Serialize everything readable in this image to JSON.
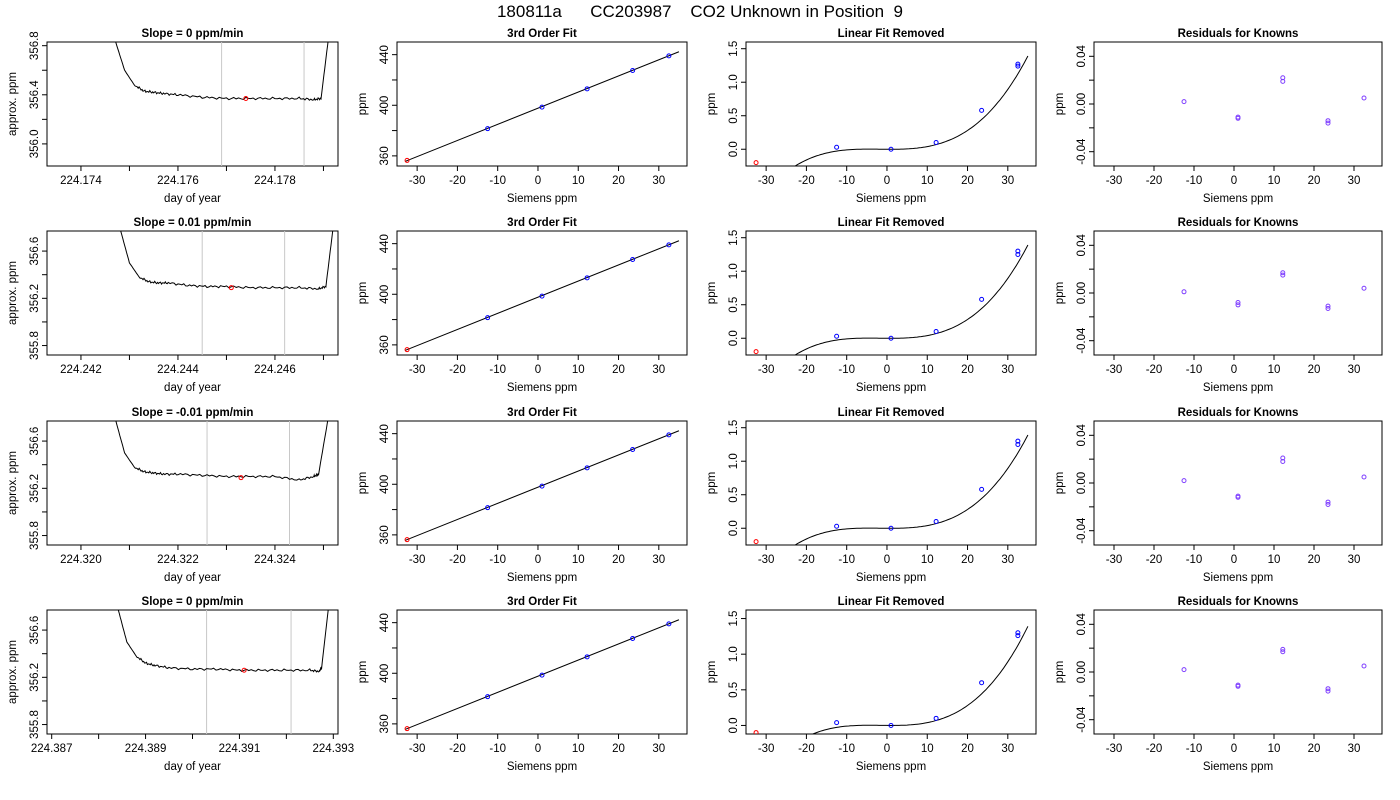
{
  "figure_title": "180811a      CC203987    CO2 Unknown in Position  9",
  "colors": {
    "axis": "#000000",
    "line": "#000000",
    "known_points": "#0000ff",
    "unknown_points": "#ff0000",
    "residual_points": "#7f3fff",
    "window_lines": "#c8c8c8"
  },
  "chart_data": [
    {
      "type": "line",
      "row": 1,
      "panel": "timeseries",
      "title": "Slope =  0  ppm/min",
      "xlabel": "day of year",
      "ylabel": "approx. ppm",
      "xlim": [
        224.1733,
        224.1793
      ],
      "ylim": [
        355.82,
        356.83
      ],
      "xticks": [
        224.174,
        224.175,
        224.176,
        224.177,
        224.178,
        224.179
      ],
      "xtick_labels": [
        "224.174",
        "",
        "224.176",
        "",
        "224.178",
        ""
      ],
      "yticks": [
        356.0,
        356.2,
        356.4,
        356.6,
        356.8
      ],
      "ytick_labels": [
        "356.0",
        "",
        "356.4",
        "",
        "356.8"
      ],
      "window_lines": [
        224.1769,
        224.1786
      ],
      "unknown_point": [
        224.1774,
        356.37
      ],
      "series": {
        "x": [
          224.1747,
          224.1749,
          224.1751,
          224.1753,
          224.1755,
          224.1757,
          224.176,
          224.1765,
          224.177,
          224.1775,
          224.178,
          224.1785,
          224.1788,
          224.17895,
          224.1791
        ],
        "y": [
          356.85,
          356.6,
          356.48,
          356.43,
          356.42,
          356.41,
          356.4,
          356.38,
          356.37,
          356.37,
          356.37,
          356.37,
          356.36,
          356.37,
          356.85
        ]
      }
    },
    {
      "type": "scatter",
      "row": 1,
      "panel": "fit",
      "title": "3rd Order Fit",
      "xlabel": "Siemens ppm",
      "ylabel": "ppm",
      "xlim": [
        -35,
        37
      ],
      "ylim": [
        352,
        450
      ],
      "xticks": [
        -30,
        -20,
        -10,
        0,
        10,
        20,
        30
      ],
      "xtick_labels": [
        "-30",
        "-20",
        "-10",
        "0",
        "10",
        "20",
        "30"
      ],
      "yticks": [
        360,
        380,
        400,
        420,
        440
      ],
      "ytick_labels": [
        "360",
        "",
        "400",
        "",
        "440"
      ],
      "knowns": {
        "x": [
          -12.5,
          1.0,
          12.2,
          23.5,
          32.5
        ],
        "y": [
          381.5,
          398.5,
          413.0,
          427.5,
          439.0
        ]
      },
      "unknown": [
        -32.5,
        356.4
      ],
      "fit_line": {
        "x": [
          -33,
          35
        ],
        "y": [
          355.6,
          442.3
        ]
      }
    },
    {
      "type": "scatter",
      "row": 1,
      "panel": "linear_removed",
      "title": "Linear Fit Removed",
      "xlabel": "Siemens ppm",
      "ylabel": "ppm",
      "xlim": [
        -35,
        37
      ],
      "ylim": [
        -0.25,
        1.6
      ],
      "xticks": [
        -30,
        -20,
        -10,
        0,
        10,
        20,
        30
      ],
      "xtick_labels": [
        "-30",
        "-20",
        "-10",
        "0",
        "10",
        "20",
        "30"
      ],
      "yticks": [
        0.0,
        0.5,
        1.0,
        1.5
      ],
      "ytick_labels": [
        "0.0",
        "0.5",
        "1.0",
        "1.5"
      ],
      "knowns": {
        "x": [
          -12.5,
          1.0,
          12.2,
          23.5,
          32.5,
          32.5
        ],
        "y": [
          0.03,
          0.0,
          0.1,
          0.58,
          1.24,
          1.27
        ]
      },
      "unknown": [
        -32.5,
        -0.2
      ],
      "curve_coef": [
        0.0,
        -0.0004,
        0.00015,
        2.85e-05
      ]
    },
    {
      "type": "scatter",
      "row": 1,
      "panel": "residuals",
      "title": "Residuals for Knowns",
      "xlabel": "Siemens ppm",
      "ylabel": "ppm",
      "xlim": [
        -35,
        37
      ],
      "ylim": [
        -0.052,
        0.052
      ],
      "xticks": [
        -30,
        -20,
        -10,
        0,
        10,
        20,
        30
      ],
      "xtick_labels": [
        "-30",
        "-20",
        "-10",
        "0",
        "10",
        "20",
        "30"
      ],
      "yticks": [
        -0.04,
        -0.02,
        0.0,
        0.02,
        0.04
      ],
      "ytick_labels": [
        "-0.04",
        "",
        "0.00",
        "",
        "0.04"
      ],
      "points": {
        "x": [
          -12.5,
          1.0,
          1.0,
          12.2,
          12.2,
          23.5,
          23.5,
          32.5
        ],
        "y": [
          0.002,
          -0.011,
          -0.012,
          0.022,
          0.019,
          -0.014,
          -0.016,
          0.005
        ]
      }
    },
    {
      "type": "line",
      "row": 2,
      "panel": "timeseries",
      "title": "Slope =  0.01  ppm/min",
      "xlabel": "day of year",
      "ylabel": "approx. ppm",
      "xlim": [
        224.2413,
        224.2473
      ],
      "ylim": [
        355.72,
        356.77
      ],
      "xticks": [
        224.242,
        224.243,
        224.244,
        224.245,
        224.246,
        224.247
      ],
      "xtick_labels": [
        "224.242",
        "",
        "224.244",
        "",
        "224.246",
        ""
      ],
      "yticks": [
        355.8,
        356.0,
        356.2,
        356.4,
        356.6
      ],
      "ytick_labels": [
        "355.8",
        "",
        "356.2",
        "",
        "356.6"
      ],
      "window_lines": [
        224.2445,
        224.2462
      ],
      "unknown_point": [
        224.2451,
        356.29
      ],
      "series": {
        "x": [
          224.2428,
          224.243,
          224.2432,
          224.2434,
          224.2436,
          224.2438,
          224.2442,
          224.2446,
          224.245,
          224.2455,
          224.246,
          224.2465,
          224.2469,
          224.24705,
          224.2472
        ],
        "y": [
          356.8,
          356.5,
          356.38,
          356.34,
          356.33,
          356.33,
          356.31,
          356.3,
          356.3,
          356.29,
          356.29,
          356.29,
          356.28,
          356.3,
          356.8
        ]
      }
    },
    {
      "type": "scatter",
      "row": 2,
      "panel": "fit",
      "title": "3rd Order Fit",
      "xlabel": "Siemens ppm",
      "ylabel": "ppm",
      "xlim": [
        -35,
        37
      ],
      "ylim": [
        352,
        450
      ],
      "xticks": [
        -30,
        -20,
        -10,
        0,
        10,
        20,
        30
      ],
      "xtick_labels": [
        "-30",
        "-20",
        "-10",
        "0",
        "10",
        "20",
        "30"
      ],
      "yticks": [
        360,
        380,
        400,
        420,
        440
      ],
      "ytick_labels": [
        "360",
        "",
        "400",
        "",
        "440"
      ],
      "knowns": {
        "x": [
          -12.5,
          1.0,
          12.2,
          23.5,
          32.5
        ],
        "y": [
          381.5,
          398.5,
          413.0,
          427.5,
          439.0
        ]
      },
      "unknown": [
        -32.5,
        356.2
      ],
      "fit_line": {
        "x": [
          -33,
          35
        ],
        "y": [
          355.6,
          442.3
        ]
      }
    },
    {
      "type": "scatter",
      "row": 2,
      "panel": "linear_removed",
      "title": "Linear Fit Removed",
      "xlabel": "Siemens ppm",
      "ylabel": "ppm",
      "xlim": [
        -35,
        37
      ],
      "ylim": [
        -0.25,
        1.6
      ],
      "xticks": [
        -30,
        -20,
        -10,
        0,
        10,
        20,
        30
      ],
      "xtick_labels": [
        "-30",
        "-20",
        "-10",
        "0",
        "10",
        "20",
        "30"
      ],
      "yticks": [
        0.0,
        0.5,
        1.0,
        1.5
      ],
      "ytick_labels": [
        "0.0",
        "0.5",
        "1.0",
        "1.5"
      ],
      "knowns": {
        "x": [
          -12.5,
          1.0,
          12.2,
          23.5,
          32.5,
          32.5
        ],
        "y": [
          0.03,
          0.0,
          0.1,
          0.58,
          1.25,
          1.3
        ]
      },
      "unknown": [
        -32.5,
        -0.2
      ],
      "curve_coef": [
        0.0,
        -0.0004,
        0.00015,
        2.85e-05
      ]
    },
    {
      "type": "scatter",
      "row": 2,
      "panel": "residuals",
      "title": "Residuals for Knowns",
      "xlabel": "Siemens ppm",
      "ylabel": "ppm",
      "xlim": [
        -35,
        37
      ],
      "ylim": [
        -0.052,
        0.052
      ],
      "xticks": [
        -30,
        -20,
        -10,
        0,
        10,
        20,
        30
      ],
      "xtick_labels": [
        "-30",
        "-20",
        "-10",
        "0",
        "10",
        "20",
        "30"
      ],
      "yticks": [
        -0.04,
        -0.02,
        0.0,
        0.02,
        0.04
      ],
      "ytick_labels": [
        "-0.04",
        "",
        "0.00",
        "",
        "0.04"
      ],
      "points": {
        "x": [
          -12.5,
          1.0,
          1.0,
          12.2,
          12.2,
          23.5,
          23.5,
          32.5
        ],
        "y": [
          0.001,
          -0.008,
          -0.01,
          0.017,
          0.015,
          -0.011,
          -0.013,
          0.004
        ]
      }
    },
    {
      "type": "line",
      "row": 3,
      "panel": "timeseries",
      "title": "Slope =  -0.01  ppm/min",
      "xlabel": "day of year",
      "ylabel": "approx. ppm",
      "xlim": [
        224.3193,
        224.3253
      ],
      "ylim": [
        355.72,
        356.77
      ],
      "xticks": [
        224.32,
        224.321,
        224.322,
        224.323,
        224.324,
        224.325
      ],
      "xtick_labels": [
        "224.320",
        "",
        "224.322",
        "",
        "224.324",
        ""
      ],
      "yticks": [
        355.8,
        356.0,
        356.2,
        356.4,
        356.6
      ],
      "ytick_labels": [
        "355.8",
        "",
        "356.2",
        "",
        "356.6"
      ],
      "window_lines": [
        224.3226,
        224.3243
      ],
      "unknown_point": [
        224.3233,
        356.29
      ],
      "series": {
        "x": [
          224.3207,
          224.3209,
          224.3211,
          224.3213,
          224.3215,
          224.3217,
          224.322,
          224.3225,
          224.323,
          224.3235,
          224.324,
          224.3245,
          224.3248,
          224.3249,
          224.3251
        ],
        "y": [
          356.8,
          356.5,
          356.38,
          356.34,
          356.33,
          356.32,
          356.32,
          356.31,
          356.3,
          356.3,
          356.3,
          356.27,
          356.3,
          356.32,
          356.8
        ]
      }
    },
    {
      "type": "scatter",
      "row": 3,
      "panel": "fit",
      "title": "3rd Order Fit",
      "xlabel": "Siemens ppm",
      "ylabel": "ppm",
      "xlim": [
        -35,
        37
      ],
      "ylim": [
        352,
        450
      ],
      "xticks": [
        -30,
        -20,
        -10,
        0,
        10,
        20,
        30
      ],
      "xtick_labels": [
        "-30",
        "-20",
        "-10",
        "0",
        "10",
        "20",
        "30"
      ],
      "yticks": [
        360,
        380,
        400,
        420,
        440
      ],
      "ytick_labels": [
        "360",
        "",
        "400",
        "",
        "440"
      ],
      "knowns": {
        "x": [
          -12.5,
          1.0,
          12.2,
          23.5,
          32.5
        ],
        "y": [
          381.5,
          398.5,
          413.0,
          427.5,
          439.0
        ]
      },
      "unknown": [
        -32.5,
        356.2
      ],
      "fit_line": {
        "x": [
          -33,
          35
        ],
        "y": [
          355.6,
          442.3
        ]
      }
    },
    {
      "type": "scatter",
      "row": 3,
      "panel": "linear_removed",
      "title": "Linear Fit Removed",
      "xlabel": "Siemens ppm",
      "ylabel": "ppm",
      "xlim": [
        -35,
        37
      ],
      "ylim": [
        -0.25,
        1.6
      ],
      "xticks": [
        -30,
        -20,
        -10,
        0,
        10,
        20,
        30
      ],
      "xtick_labels": [
        "-30",
        "-20",
        "-10",
        "0",
        "10",
        "20",
        "30"
      ],
      "yticks": [
        0.0,
        0.5,
        1.0,
        1.5
      ],
      "ytick_labels": [
        "0.0",
        "0.5",
        "1.0",
        "1.5"
      ],
      "knowns": {
        "x": [
          -12.5,
          1.0,
          12.2,
          23.5,
          32.5,
          32.5
        ],
        "y": [
          0.03,
          0.0,
          0.1,
          0.58,
          1.25,
          1.3
        ]
      },
      "unknown": [
        -32.5,
        -0.2
      ],
      "curve_coef": [
        0.0,
        -0.0004,
        0.00015,
        2.85e-05
      ]
    },
    {
      "type": "scatter",
      "row": 3,
      "panel": "residuals",
      "title": "Residuals for Knowns",
      "xlabel": "Siemens ppm",
      "ylabel": "ppm",
      "xlim": [
        -35,
        37
      ],
      "ylim": [
        -0.052,
        0.052
      ],
      "xticks": [
        -30,
        -20,
        -10,
        0,
        10,
        20,
        30
      ],
      "xtick_labels": [
        "-30",
        "-20",
        "-10",
        "0",
        "10",
        "20",
        "30"
      ],
      "yticks": [
        -0.04,
        -0.02,
        0.0,
        0.02,
        0.04
      ],
      "ytick_labels": [
        "-0.04",
        "",
        "0.00",
        "",
        "0.04"
      ],
      "points": {
        "x": [
          -12.5,
          1.0,
          1.0,
          12.2,
          12.2,
          23.5,
          23.5,
          32.5
        ],
        "y": [
          0.002,
          -0.011,
          -0.012,
          0.021,
          0.018,
          -0.016,
          -0.018,
          0.005
        ]
      }
    },
    {
      "type": "line",
      "row": 4,
      "panel": "timeseries",
      "title": "Slope =  0  ppm/min",
      "xlabel": "day of year",
      "ylabel": "approx. ppm",
      "xlim": [
        224.3869,
        224.3931
      ],
      "ylim": [
        355.72,
        356.77
      ],
      "xticks": [
        224.387,
        224.388,
        224.389,
        224.39,
        224.391,
        224.392,
        224.393
      ],
      "xtick_labels": [
        "224.387",
        "",
        "224.389",
        "",
        "224.391",
        "",
        "224.393"
      ],
      "yticks": [
        355.8,
        356.0,
        356.2,
        356.4,
        356.6
      ],
      "ytick_labels": [
        "355.8",
        "",
        "356.2",
        "",
        "356.6"
      ],
      "window_lines": [
        224.3903,
        224.3921
      ],
      "unknown_point": [
        224.3911,
        356.26
      ],
      "series": {
        "x": [
          224.3884,
          224.3886,
          224.3888,
          224.389,
          224.3892,
          224.3895,
          224.39,
          224.3905,
          224.391,
          224.3915,
          224.392,
          224.3925,
          224.3927,
          224.39275,
          224.3929
        ],
        "y": [
          356.8,
          356.5,
          356.38,
          356.32,
          356.3,
          356.28,
          356.27,
          356.27,
          356.26,
          356.26,
          356.26,
          356.26,
          356.25,
          356.28,
          356.8
        ]
      }
    },
    {
      "type": "scatter",
      "row": 4,
      "panel": "fit",
      "title": "3rd Order Fit",
      "xlabel": "Siemens ppm",
      "ylabel": "ppm",
      "xlim": [
        -35,
        37
      ],
      "ylim": [
        352,
        450
      ],
      "xticks": [
        -30,
        -20,
        -10,
        0,
        10,
        20,
        30
      ],
      "xtick_labels": [
        "-30",
        "-20",
        "-10",
        "0",
        "10",
        "20",
        "30"
      ],
      "yticks": [
        360,
        380,
        400,
        420,
        440
      ],
      "ytick_labels": [
        "360",
        "",
        "400",
        "",
        "440"
      ],
      "knowns": {
        "x": [
          -12.5,
          1.0,
          12.2,
          23.5,
          32.5
        ],
        "y": [
          381.5,
          398.5,
          413.0,
          427.5,
          439.0
        ]
      },
      "unknown": [
        -32.5,
        356.2
      ],
      "fit_line": {
        "x": [
          -33,
          35
        ],
        "y": [
          355.6,
          442.3
        ]
      }
    },
    {
      "type": "scatter",
      "row": 4,
      "panel": "linear_removed",
      "title": "Linear Fit Removed",
      "xlabel": "Siemens ppm",
      "ylabel": "ppm",
      "xlim": [
        -35,
        37
      ],
      "ylim": [
        -0.12,
        1.62
      ],
      "xticks": [
        -30,
        -20,
        -10,
        0,
        10,
        20,
        30
      ],
      "xtick_labels": [
        "-30",
        "-20",
        "-10",
        "0",
        "10",
        "20",
        "30"
      ],
      "yticks": [
        0.0,
        0.5,
        1.0,
        1.5
      ],
      "ytick_labels": [
        "0.0",
        "0.5",
        "1.0",
        "1.5"
      ],
      "knowns": {
        "x": [
          -12.5,
          1.0,
          12.2,
          23.5,
          32.5,
          32.5
        ],
        "y": [
          0.04,
          0.0,
          0.1,
          0.6,
          1.26,
          1.3
        ]
      },
      "unknown": [
        -32.5,
        -0.1
      ],
      "curve_coef": [
        0.0,
        -0.0004,
        0.00015,
        2.85e-05
      ]
    },
    {
      "type": "scatter",
      "row": 4,
      "panel": "residuals",
      "title": "Residuals for Knowns",
      "xlabel": "Siemens ppm",
      "ylabel": "ppm",
      "xlim": [
        -35,
        37
      ],
      "ylim": [
        -0.052,
        0.052
      ],
      "xticks": [
        -30,
        -20,
        -10,
        0,
        10,
        20,
        30
      ],
      "xtick_labels": [
        "-30",
        "-20",
        "-10",
        "0",
        "10",
        "20",
        "30"
      ],
      "yticks": [
        -0.04,
        -0.02,
        0.0,
        0.02,
        0.04
      ],
      "ytick_labels": [
        "-0.04",
        "",
        "0.00",
        "",
        "0.04"
      ],
      "points": {
        "x": [
          -12.5,
          1.0,
          1.0,
          12.2,
          12.2,
          23.5,
          23.5,
          32.5
        ],
        "y": [
          0.002,
          -0.011,
          -0.012,
          0.019,
          0.017,
          -0.014,
          -0.016,
          0.005
        ]
      }
    }
  ]
}
